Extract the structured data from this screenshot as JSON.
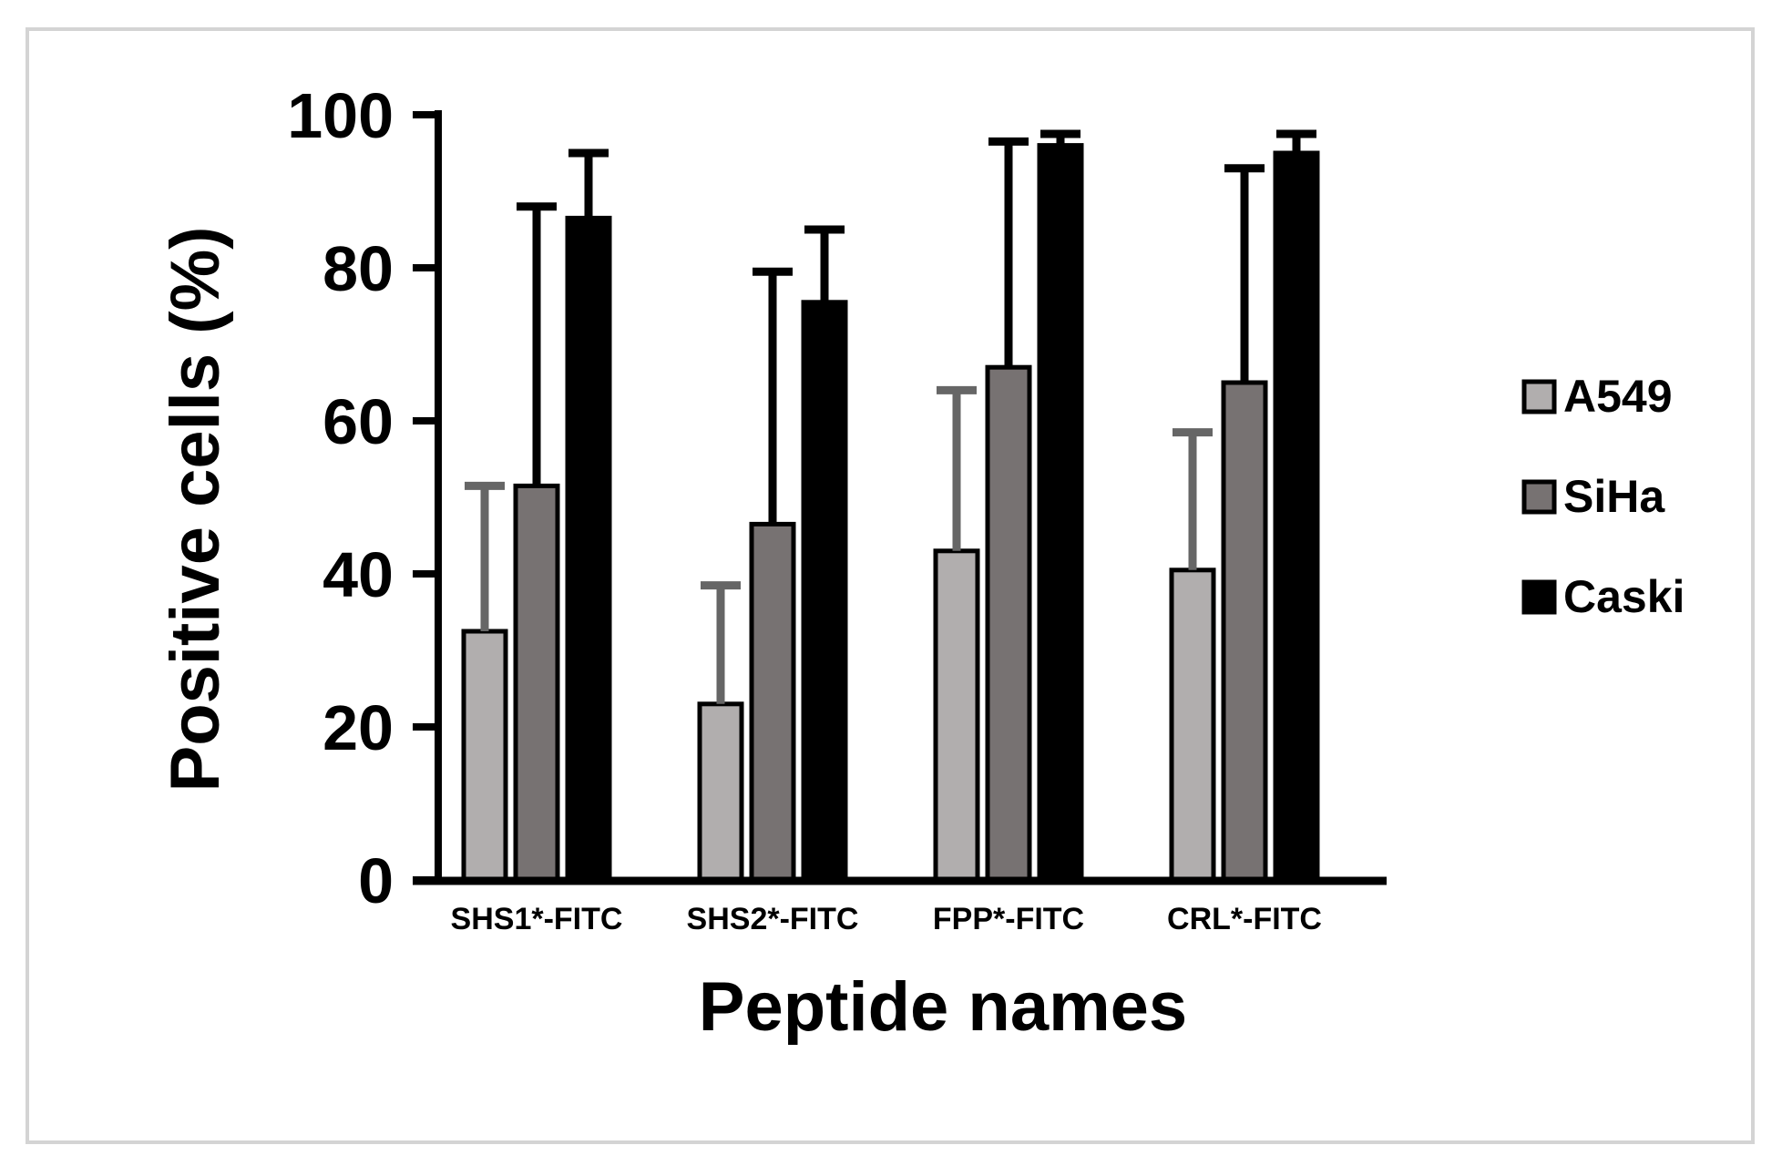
{
  "chart_data": {
    "type": "bar",
    "xlabel": "Peptide names",
    "ylabel": "Positive cells (%)",
    "ylim": [
      0,
      100
    ],
    "yticks": [
      "0",
      "20",
      "40",
      "60",
      "80",
      "100"
    ],
    "categories": [
      "SHS1*-FITC",
      "SHS2*-FITC",
      "FPP*-FITC",
      "CRL*-FITC"
    ],
    "series": [
      {
        "name": "A549",
        "color": "#b1aeae",
        "errorColor": "#666666",
        "values": [
          32.5,
          23,
          43,
          40.5
        ],
        "errors": [
          19,
          15.5,
          21,
          18
        ]
      },
      {
        "name": "SiHa",
        "color": "#777272",
        "errorColor": "#000000",
        "values": [
          51.5,
          46.5,
          67,
          65
        ],
        "errors": [
          36.5,
          33,
          29.5,
          28
        ]
      },
      {
        "name": "Caski",
        "color": "#000000",
        "errorColor": "#000000",
        "values": [
          86.5,
          75.5,
          96,
          95
        ],
        "errors": [
          8.5,
          9.5,
          1.5,
          2.5
        ]
      }
    ],
    "grid": false,
    "legend_position": "right",
    "error_bars": "upper only"
  }
}
